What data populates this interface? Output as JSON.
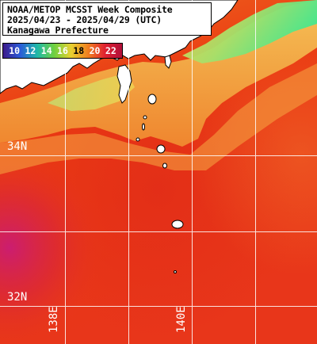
{
  "title": {
    "line1": "NOAA/METOP MCSST Week Composite",
    "line2": "2025/04/23 - 2025/04/29 (UTC)",
    "line3": "Kanagawa Prefecture"
  },
  "legend": {
    "ticks": [
      "10",
      "12",
      "14",
      "16",
      "18",
      "20",
      "22"
    ],
    "colors": [
      "#3b1a8a",
      "#2a5ad8",
      "#1fb8a8",
      "#6fd040",
      "#e8d030",
      "#f08020",
      "#e02030",
      "#b0103a"
    ]
  },
  "grid": {
    "latitudes": [
      "34N",
      "32N"
    ],
    "longitudes": [
      "138E",
      "140E"
    ]
  },
  "colors": {
    "land": "#ffffff",
    "coast": "#000000",
    "grid": "#ffffff",
    "warm_sea": "#ea3a12",
    "cool_coast": "#f3bd4a"
  }
}
